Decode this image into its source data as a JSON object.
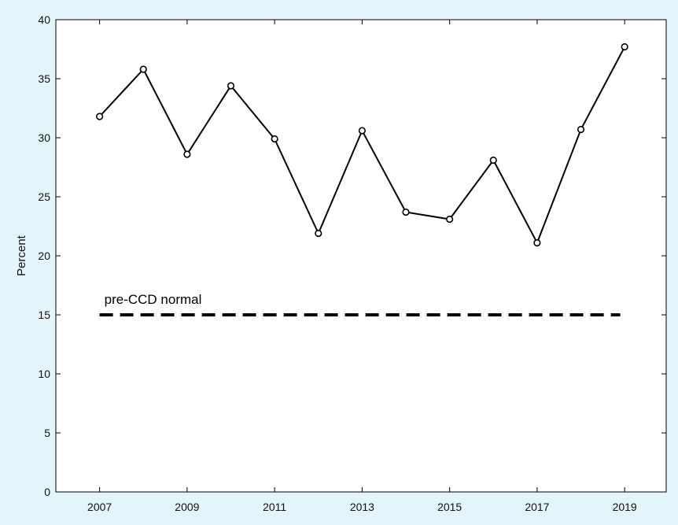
{
  "chart_data": {
    "type": "line",
    "title": "",
    "xlabel": "",
    "ylabel": "Percent",
    "xlim": [
      2006.0,
      2019.95
    ],
    "ylim": [
      0,
      40
    ],
    "x_ticks": [
      2007,
      2009,
      2011,
      2013,
      2015,
      2017,
      2019
    ],
    "y_ticks": [
      0,
      5,
      10,
      15,
      20,
      25,
      30,
      35,
      40
    ],
    "grid": false,
    "series": [
      {
        "x": [
          2007,
          2008,
          2009,
          2010,
          2011,
          2012,
          2013,
          2014,
          2015,
          2016,
          2017,
          2018,
          2019
        ],
        "values": [
          31.8,
          35.8,
          28.6,
          34.4,
          29.9,
          21.9,
          30.6,
          23.7,
          23.1,
          28.1,
          21.1,
          30.7,
          37.7
        ],
        "color": "#000000",
        "marker": "open-circle"
      }
    ],
    "reference_line": {
      "label": "pre-CCD normal",
      "y": 15,
      "x_range": [
        2007,
        2018.9
      ],
      "style": "dashed",
      "color": "#000000"
    }
  }
}
